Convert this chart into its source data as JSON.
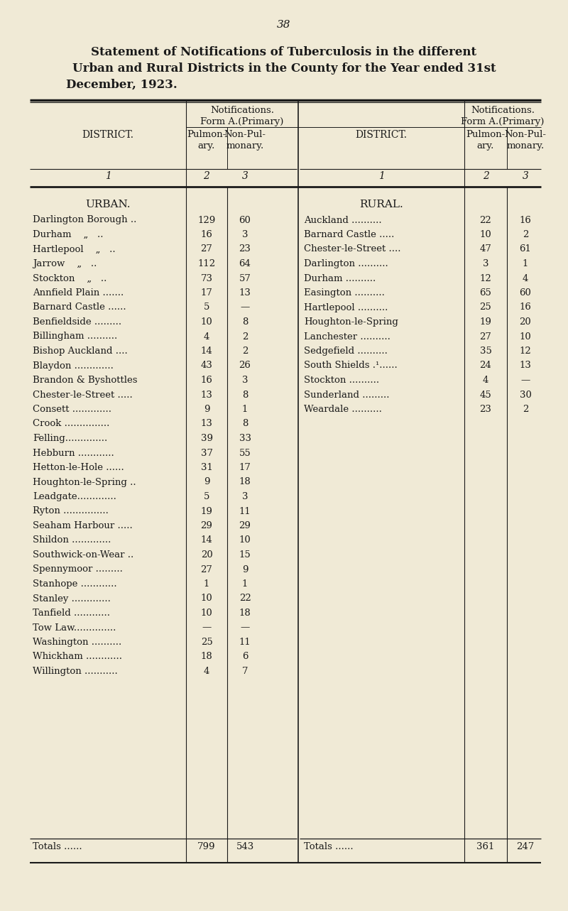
{
  "page_number": "38",
  "title_line1": "Statement of Notifications of Tuberculosis in the different",
  "title_line2": "Urban and Rural Districts in the County for the Year ended 31st",
  "title_line3": "December, 1923.",
  "bg_color": "#f0ead6",
  "text_color": "#1a1a1a",
  "urban_label": "URBAN.",
  "rural_label": "RURAL.",
  "urban_rows": [
    [
      "Darlington Borough ..",
      "129",
      "60"
    ],
    [
      "Durham    „   ..",
      "16",
      "3"
    ],
    [
      "Hartlepool    „   ..",
      "27",
      "23"
    ],
    [
      "Jarrow    „   ..",
      "112",
      "64"
    ],
    [
      "Stockton    „   ..",
      "73",
      "57"
    ],
    [
      "Annfield Plain .......",
      "17",
      "13"
    ],
    [
      "Barnard Castle ......",
      "5",
      "—"
    ],
    [
      "Benfieldside .........",
      "10",
      "8"
    ],
    [
      "Billingham ..........",
      "4",
      "2"
    ],
    [
      "Bishop Auckland ....",
      "14",
      "2"
    ],
    [
      "Blaydon .............",
      "43",
      "26"
    ],
    [
      "Brandon & Byshottles",
      "16",
      "3"
    ],
    [
      "Chester-le-Street .....",
      "13",
      "8"
    ],
    [
      "Consett .............",
      "9",
      "1"
    ],
    [
      "Crook ...............",
      "13",
      "8"
    ],
    [
      "Felling..............",
      "39",
      "33"
    ],
    [
      "Hebburn ............",
      "37",
      "55"
    ],
    [
      "Hetton-le-Hole ......",
      "31",
      "17"
    ],
    [
      "Houghton-le-Spring ..",
      "9",
      "18"
    ],
    [
      "Leadgate.............",
      "5",
      "3"
    ],
    [
      "Ryton ...............",
      "19",
      "11"
    ],
    [
      "Seaham Harbour .....",
      "29",
      "29"
    ],
    [
      "Shildon .............",
      "14",
      "10"
    ],
    [
      "Southwick-on-Wear ..",
      "20",
      "15"
    ],
    [
      "Spennymoor .........",
      "27",
      "9"
    ],
    [
      "Stanhope ............",
      "1",
      "1"
    ],
    [
      "Stanley .............",
      "10",
      "22"
    ],
    [
      "Tanfield ............",
      "10",
      "18"
    ],
    [
      "Tow Law..............",
      "—",
      "—"
    ],
    [
      "Washington ..........",
      "25",
      "11"
    ],
    [
      "Whickham ............",
      "18",
      "6"
    ],
    [
      "Willington ...........",
      "4",
      "7"
    ]
  ],
  "rural_rows": [
    [
      "Auckland ..........",
      "22",
      "16"
    ],
    [
      "Barnard Castle .....",
      "10",
      "2"
    ],
    [
      "Chester-le-Street ....",
      "47",
      "61"
    ],
    [
      "Darlington ..........",
      "3",
      "1"
    ],
    [
      "Durham ..........",
      "12",
      "4"
    ],
    [
      "Easington ..........",
      "65",
      "60"
    ],
    [
      "Hartlepool ..........",
      "25",
      "16"
    ],
    [
      "Houghton-le-Spring",
      "19",
      "20"
    ],
    [
      "Lanchester ..........",
      "27",
      "10"
    ],
    [
      "Sedgefield ..........",
      "35",
      "12"
    ],
    [
      "South Shields .¹......",
      "24",
      "13"
    ],
    [
      "Stockton ..........",
      "4",
      "—"
    ],
    [
      "Sunderland .........",
      "45",
      "30"
    ],
    [
      "Weardale ..........",
      "23",
      "2"
    ]
  ],
  "urban_totals": [
    "799",
    "543"
  ],
  "rural_totals": [
    "361",
    "247"
  ]
}
